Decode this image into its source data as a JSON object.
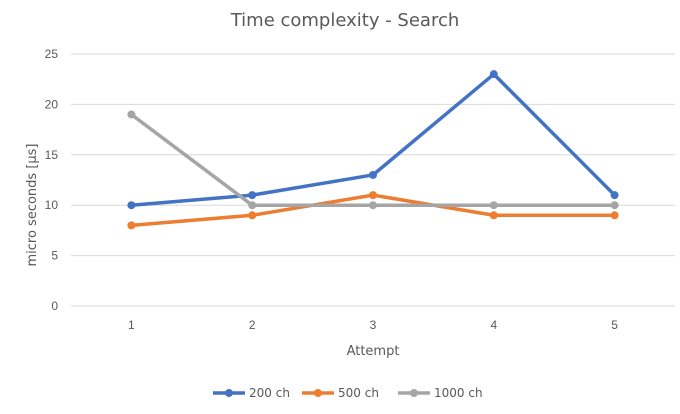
{
  "chart_data": {
    "type": "line",
    "title": "Time complexity - Search",
    "xlabel": "Attempt",
    "ylabel": "micro seconds [μs]",
    "x": [
      1,
      2,
      3,
      4,
      5
    ],
    "ylim": [
      0,
      25
    ],
    "yticks": [
      0,
      5,
      10,
      15,
      20,
      25
    ],
    "grid": true,
    "legend_position": "bottom",
    "series": [
      {
        "name": "200 ch",
        "color": "#4472C4",
        "values": [
          10,
          11,
          13,
          23,
          11
        ]
      },
      {
        "name": "500 ch",
        "color": "#ED7D31",
        "values": [
          8,
          9,
          11,
          9,
          9
        ]
      },
      {
        "name": "1000 ch",
        "color": "#A5A5A5",
        "values": [
          19,
          10,
          10,
          10,
          10
        ]
      }
    ]
  }
}
